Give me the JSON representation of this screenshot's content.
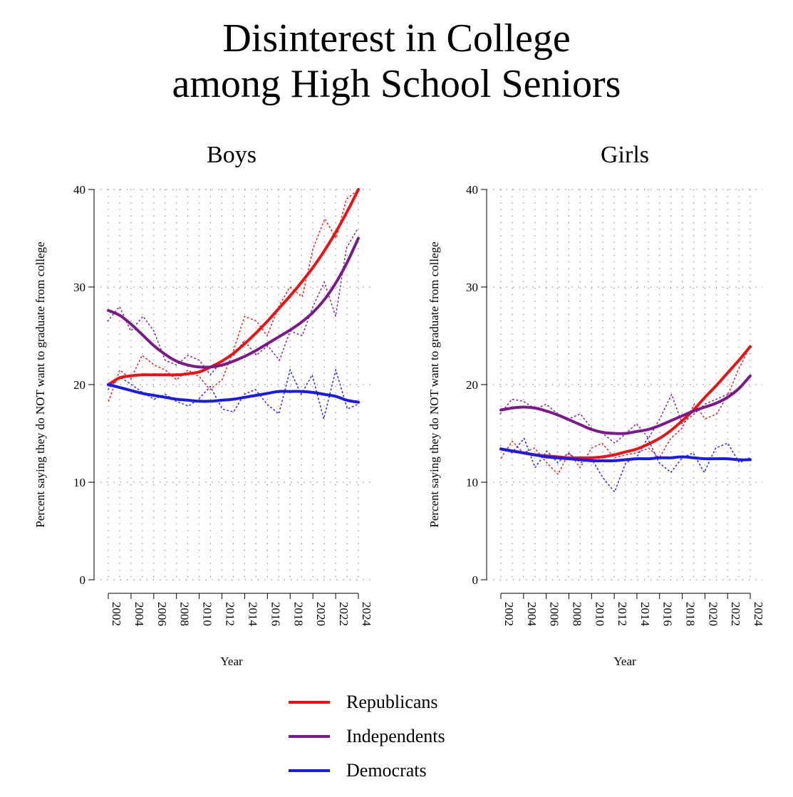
{
  "title_line1": "Disinterest in College",
  "title_line2": "among High School Seniors",
  "chart_data": {
    "type": "line",
    "x": [
      2002,
      2003,
      2004,
      2005,
      2006,
      2007,
      2008,
      2009,
      2010,
      2011,
      2012,
      2013,
      2014,
      2015,
      2016,
      2017,
      2018,
      2019,
      2020,
      2021,
      2022,
      2023,
      2024
    ],
    "xticks": [
      2002,
      2004,
      2006,
      2008,
      2010,
      2012,
      2014,
      2016,
      2018,
      2020,
      2022,
      2024
    ],
    "xtick_labels": [
      "2002",
      "2004",
      "2006",
      "2008",
      "2010",
      "2012",
      "2014",
      "2016",
      "2018",
      "2020",
      "2022",
      "2024"
    ],
    "yticks": [
      0,
      10,
      20,
      30,
      40
    ],
    "ytick_labels": [
      "0",
      "10",
      "20",
      "30",
      "40"
    ],
    "ylim": [
      0,
      40
    ],
    "xlabel": "Year",
    "ylabel": "Percent saying they do NOT want to graduate from college",
    "grid": "dotted",
    "legend_position": "bottom",
    "colors": {
      "Republicans": "#ee1111",
      "Independents": "#7a1a8a",
      "Democrats": "#1a1aee"
    },
    "panels": [
      {
        "title": "Boys",
        "smoothed": [
          {
            "name": "Republicans",
            "values": [
              20.0,
              20.7,
              20.9,
              21.0,
              21.0,
              21.0,
              21.0,
              21.1,
              21.3,
              21.8,
              22.4,
              23.2,
              24.2,
              25.3,
              26.5,
              27.8,
              29.1,
              30.5,
              32.0,
              33.7,
              35.6,
              37.7,
              40.0
            ]
          },
          {
            "name": "Independents",
            "values": [
              27.6,
              27.1,
              26.2,
              25.1,
              24.0,
              23.1,
              22.4,
              22.0,
              21.8,
              21.8,
              22.0,
              22.4,
              22.9,
              23.5,
              24.2,
              24.9,
              25.6,
              26.4,
              27.4,
              28.7,
              30.4,
              32.5,
              35.0
            ]
          },
          {
            "name": "Democrats",
            "values": [
              20.0,
              19.7,
              19.4,
              19.1,
              18.9,
              18.7,
              18.5,
              18.4,
              18.3,
              18.3,
              18.4,
              18.5,
              18.7,
              18.9,
              19.1,
              19.3,
              19.3,
              19.3,
              19.2,
              19.0,
              18.8,
              18.4,
              18.2
            ]
          }
        ],
        "observed": [
          {
            "name": "Republicans",
            "values": [
              18.3,
              21.5,
              20.6,
              23.0,
              22.0,
              21.5,
              20.5,
              21.5,
              20.8,
              19.5,
              20.5,
              23.5,
              27.0,
              26.5,
              25.0,
              28.0,
              30.0,
              29.0,
              34.0,
              37.0,
              35.0,
              39.0,
              40.0
            ]
          },
          {
            "name": "Independents",
            "values": [
              26.5,
              28.0,
              25.5,
              27.0,
              25.5,
              22.5,
              22.0,
              23.0,
              22.5,
              21.0,
              22.5,
              23.0,
              24.5,
              23.0,
              24.0,
              22.5,
              25.5,
              25.0,
              28.0,
              30.5,
              27.0,
              34.0,
              36.0
            ]
          },
          {
            "name": "Democrats",
            "values": [
              19.5,
              20.8,
              20.0,
              19.2,
              18.5,
              19.0,
              18.3,
              17.8,
              18.5,
              19.8,
              17.5,
              17.2,
              19.0,
              19.5,
              18.0,
              17.0,
              21.5,
              19.0,
              21.0,
              16.5,
              21.5,
              17.5,
              18.0
            ]
          }
        ]
      },
      {
        "title": "Girls",
        "smoothed": [
          {
            "name": "Republicans",
            "values": [
              13.4,
              13.2,
              13.0,
              12.8,
              12.7,
              12.6,
              12.5,
              12.5,
              12.5,
              12.6,
              12.8,
              13.1,
              13.4,
              13.9,
              14.5,
              15.3,
              16.3,
              17.4,
              18.7,
              19.9,
              21.2,
              22.5,
              23.9
            ]
          },
          {
            "name": "Independents",
            "values": [
              17.4,
              17.6,
              17.7,
              17.6,
              17.3,
              16.9,
              16.4,
              15.9,
              15.4,
              15.1,
              15.0,
              15.0,
              15.2,
              15.4,
              15.8,
              16.3,
              16.8,
              17.3,
              17.7,
              18.1,
              18.7,
              19.6,
              20.9
            ]
          },
          {
            "name": "Democrats",
            "values": [
              13.4,
              13.2,
              13.0,
              12.8,
              12.6,
              12.5,
              12.4,
              12.3,
              12.2,
              12.2,
              12.2,
              12.3,
              12.4,
              12.4,
              12.5,
              12.5,
              12.6,
              12.5,
              12.4,
              12.4,
              12.4,
              12.3,
              12.3
            ]
          }
        ],
        "observed": [
          {
            "name": "Republicans",
            "values": [
              12.5,
              14.2,
              13.0,
              13.5,
              12.0,
              10.8,
              13.0,
              11.5,
              13.5,
              14.0,
              12.5,
              12.8,
              13.0,
              13.5,
              12.5,
              14.5,
              15.5,
              18.0,
              16.5,
              17.0,
              19.0,
              21.5,
              24.0
            ]
          },
          {
            "name": "Independents",
            "values": [
              17.0,
              18.5,
              18.3,
              17.5,
              18.0,
              17.0,
              16.5,
              17.0,
              15.5,
              15.0,
              14.0,
              15.0,
              16.0,
              14.5,
              16.5,
              19.0,
              16.0,
              17.0,
              18.0,
              18.5,
              19.0,
              19.5,
              21.0
            ]
          },
          {
            "name": "Democrats",
            "values": [
              13.5,
              13.0,
              14.5,
              11.5,
              13.2,
              12.0,
              13.0,
              12.0,
              12.5,
              10.5,
              9.0,
              12.0,
              12.5,
              14.5,
              12.0,
              11.0,
              12.5,
              13.0,
              11.0,
              13.5,
              14.0,
              12.0,
              12.5
            ]
          }
        ]
      }
    ]
  },
  "legend": [
    {
      "name": "Republicans",
      "color": "#ee1111"
    },
    {
      "name": "Independents",
      "color": "#7a1a8a"
    },
    {
      "name": "Democrats",
      "color": "#1a1aee"
    }
  ]
}
